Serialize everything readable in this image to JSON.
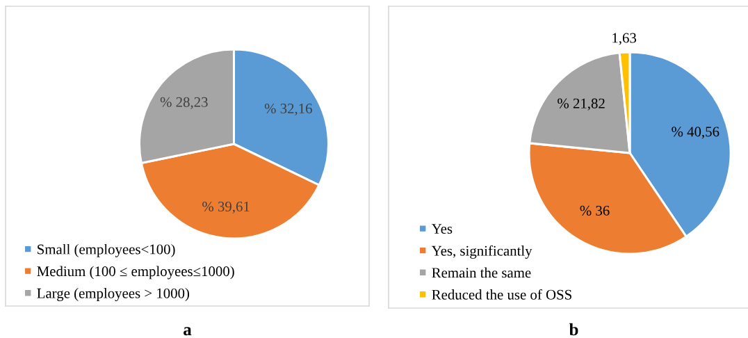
{
  "chart_data": [
    {
      "type": "pie",
      "title": "a",
      "categories": [
        "Small (employees<100)",
        "Medium (100 ≤ employees≤1000)",
        "Large (employees > 1000)"
      ],
      "values": [
        32.16,
        39.61,
        28.23
      ],
      "colors": [
        "#5b9bd5",
        "#ed7d31",
        "#a5a5a5"
      ],
      "value_labels": [
        "% 32,16",
        "% 39,61",
        "% 28,23"
      ],
      "legend": "bottom left"
    },
    {
      "type": "pie",
      "title": "b",
      "categories": [
        "Yes",
        "Yes, significantly",
        "Remain the same",
        "Reduced the use of OSS"
      ],
      "values": [
        40.56,
        36,
        21.82,
        1.63
      ],
      "colors": [
        "#5b9bd5",
        "#ed7d31",
        "#a5a5a5",
        "#ffc000"
      ],
      "value_labels": [
        "% 40,56",
        "% 36",
        "% 21,82",
        "1,63"
      ],
      "legend": "bottom left"
    }
  ]
}
